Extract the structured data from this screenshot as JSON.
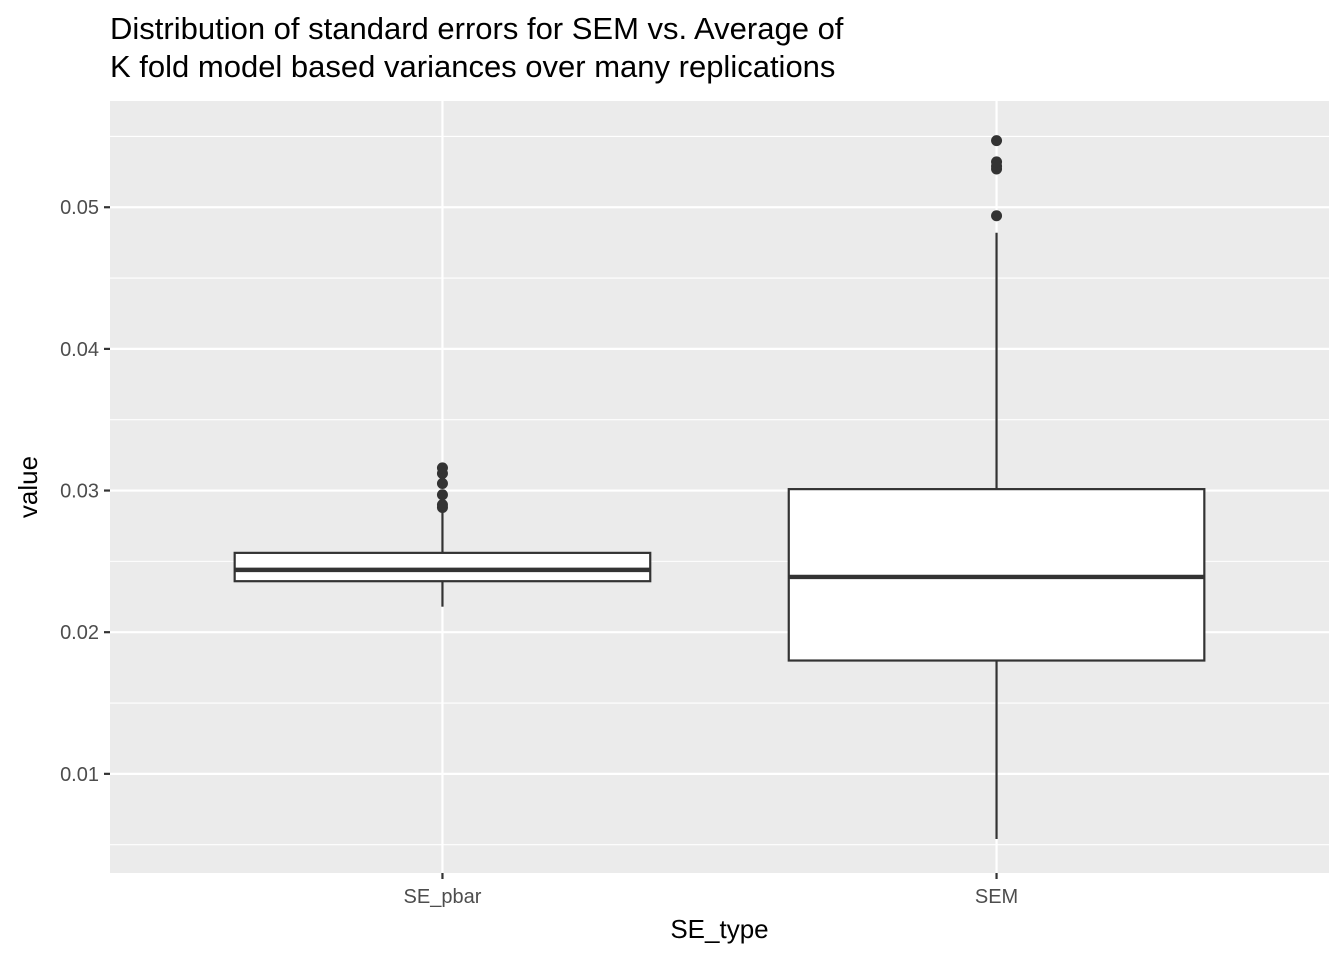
{
  "chart_data": {
    "type": "boxplot",
    "title": [
      "Distribution of standard errors for SEM vs. Average of",
      "K fold model based variances over many replications"
    ],
    "xlabel": "SE_type",
    "ylabel": "value",
    "ylim": [
      0.003,
      0.0575
    ],
    "yticks": [
      0.01,
      0.02,
      0.03,
      0.04,
      0.05
    ],
    "ytick_labels": [
      "0.01",
      "0.02",
      "0.03",
      "0.04",
      "0.05"
    ],
    "categories": [
      "SE_pbar",
      "SEM"
    ],
    "boxes": [
      {
        "category": "SE_pbar",
        "whisker_low": 0.0218,
        "q1": 0.0236,
        "median": 0.0244,
        "q3": 0.0256,
        "whisker_high": 0.0286,
        "outliers": [
          0.0288,
          0.029,
          0.0297,
          0.0305,
          0.0312,
          0.0316
        ]
      },
      {
        "category": "SEM",
        "whisker_low": 0.0054,
        "q1": 0.018,
        "median": 0.0239,
        "q3": 0.0301,
        "whisker_high": 0.0482,
        "outliers": [
          0.0494,
          0.0527,
          0.0529,
          0.0532,
          0.0547
        ]
      }
    ],
    "grid": true,
    "colors": {
      "panel_background": "#ebebeb",
      "grid_line": "#ffffff",
      "box_fill": "#ffffff",
      "box_stroke": "#333333",
      "outlier": "#333333",
      "tick": "#333333"
    }
  }
}
